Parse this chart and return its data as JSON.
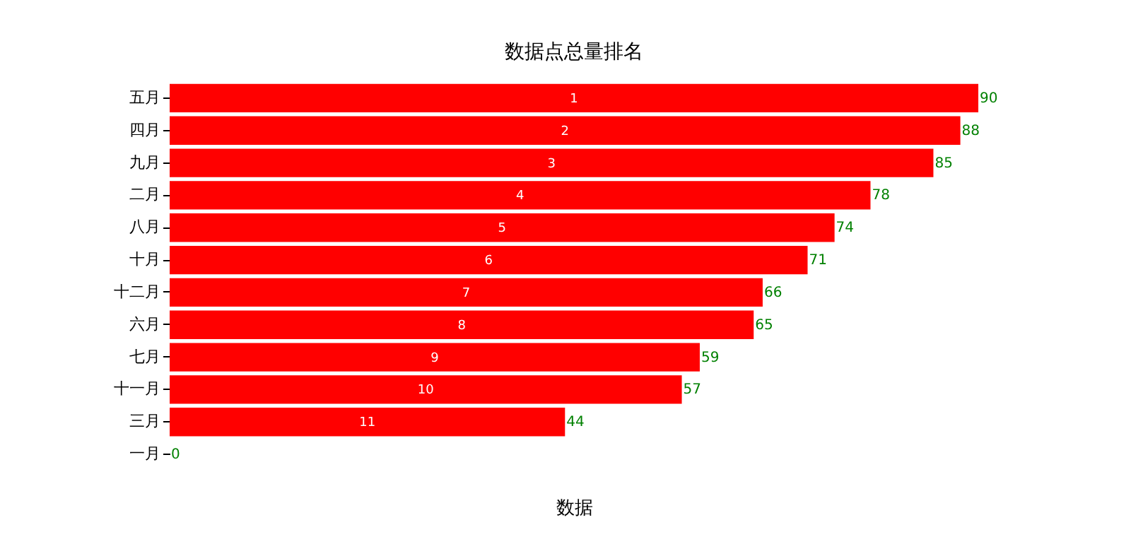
{
  "chart_data": {
    "type": "bar",
    "orientation": "horizontal",
    "title": "数据点总量排名",
    "xlabel": "数据",
    "categories": [
      "五月",
      "四月",
      "九月",
      "二月",
      "八月",
      "十月",
      "十二月",
      "六月",
      "七月",
      "十一月",
      "三月",
      "一月"
    ],
    "values": [
      90,
      88,
      85,
      78,
      74,
      71,
      66,
      65,
      59,
      57,
      44,
      0
    ],
    "color": "#ff0000",
    "data_labels": true,
    "tick_labels": "y",
    "annotations": [
      {
        "text": "1",
        "y": "五月"
      },
      {
        "text": "2",
        "y": "四月"
      },
      {
        "text": "3",
        "y": "九月"
      },
      {
        "text": "4",
        "y": "二月"
      },
      {
        "text": "5",
        "y": "八月"
      },
      {
        "text": "6",
        "y": "十月"
      },
      {
        "text": "7",
        "y": "十二月"
      },
      {
        "text": "8",
        "y": "六月"
      },
      {
        "text": "9",
        "y": "七月"
      },
      {
        "text": "10",
        "y": "十一月"
      },
      {
        "text": "11",
        "y": "三月"
      }
    ]
  }
}
